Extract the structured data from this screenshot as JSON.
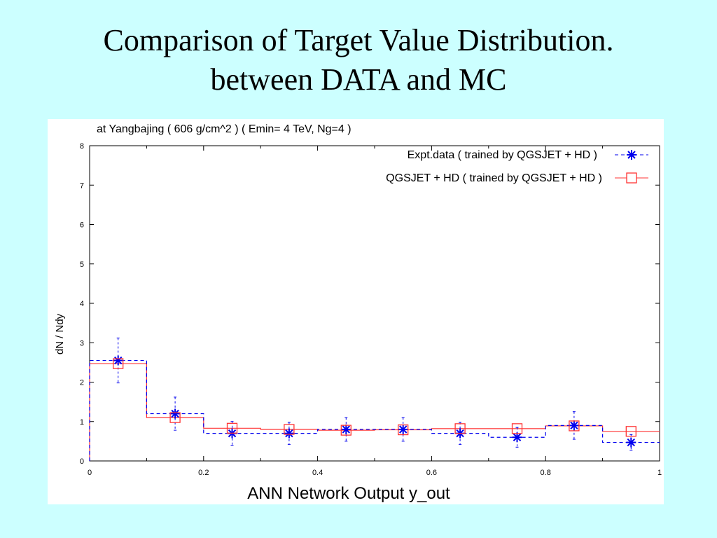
{
  "slide": {
    "title_line1": "Comparison of Target Value Distribution.",
    "title_line2": "between DATA and MC"
  },
  "colors": {
    "background": "#ccffff",
    "expt": "#0000ee",
    "mc": "#ff3333"
  },
  "chart_data": {
    "type": "line",
    "title": "at  Yangbajing  ( 606 g/cm^2 )  ( Emin= 4 TeV, Ng=4 )",
    "xlabel": "ANN  Network  Output  y_out",
    "ylabel": "dN / Ndy",
    "xlim": [
      0,
      1
    ],
    "ylim": [
      0,
      8
    ],
    "x_ticks": [
      "0",
      "0.2",
      "0.4",
      "0.6",
      "0.8",
      "1"
    ],
    "y_ticks": [
      "0",
      "1",
      "2",
      "3",
      "4",
      "5",
      "6",
      "7",
      "8"
    ],
    "bin_edges": [
      0,
      0.1,
      0.2,
      0.3,
      0.4,
      0.5,
      0.6,
      0.7,
      0.8,
      0.9,
      1.0
    ],
    "x_centers": [
      0.05,
      0.15,
      0.25,
      0.35,
      0.45,
      0.55,
      0.65,
      0.75,
      0.85,
      0.95
    ],
    "series": [
      {
        "name": "Expt.data ( trained by QGSJET + HD )",
        "style": "dashed-histogram-star",
        "values": [
          2.55,
          1.2,
          0.7,
          0.7,
          0.8,
          0.8,
          0.7,
          0.6,
          0.9,
          0.47
        ],
        "errors": [
          0.57,
          0.42,
          0.3,
          0.28,
          0.3,
          0.3,
          0.28,
          0.25,
          0.35,
          0.2
        ]
      },
      {
        "name": "QGSJET + HD ( trained by QGSJET + HD )",
        "style": "solid-histogram-square",
        "values": [
          2.47,
          1.1,
          0.83,
          0.8,
          0.78,
          0.79,
          0.82,
          0.82,
          0.89,
          0.75
        ],
        "errors": [
          0.05,
          0.05,
          0.05,
          0.05,
          0.05,
          0.05,
          0.05,
          0.05,
          0.05,
          0.05
        ]
      }
    ],
    "legend_position": "top-right"
  }
}
